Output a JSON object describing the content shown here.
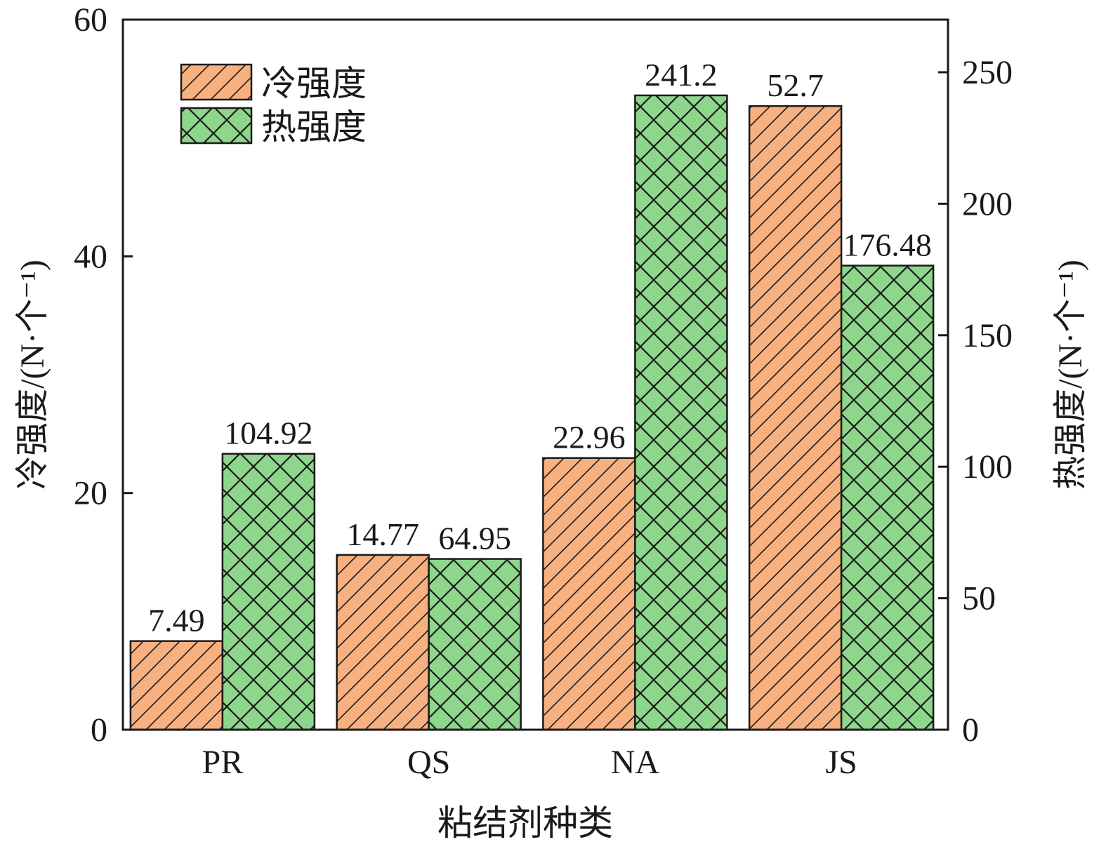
{
  "chart_data": {
    "type": "bar",
    "categories": [
      "PR",
      "QS",
      "NA",
      "JS"
    ],
    "xlabel": "粘结剂种类",
    "ylabel_left": "冷强度/(N·个⁻¹)",
    "ylabel_right": "热强度/(N·个⁻¹)",
    "ylim_left": [
      0,
      60
    ],
    "ylim_right": [
      0,
      270
    ],
    "yticks_left": [
      0,
      20,
      40,
      60
    ],
    "yticks_right": [
      0,
      50,
      100,
      150,
      200,
      250
    ],
    "grid": false,
    "legend_position": "top-left",
    "series": [
      {
        "name": "冷强度",
        "axis": "left",
        "values": [
          7.49,
          14.77,
          22.96,
          52.7
        ],
        "labels": [
          "7.49",
          "14.77",
          "22.96",
          "52.7"
        ],
        "color": "#F7B07F",
        "hatch": "diagonal"
      },
      {
        "name": "热强度",
        "axis": "right",
        "values": [
          104.92,
          64.95,
          241.2,
          176.48
        ],
        "labels": [
          "104.92",
          "64.95",
          "241.2",
          "176.48"
        ],
        "color": "#8ED68C",
        "hatch": "crosshatch"
      }
    ]
  }
}
